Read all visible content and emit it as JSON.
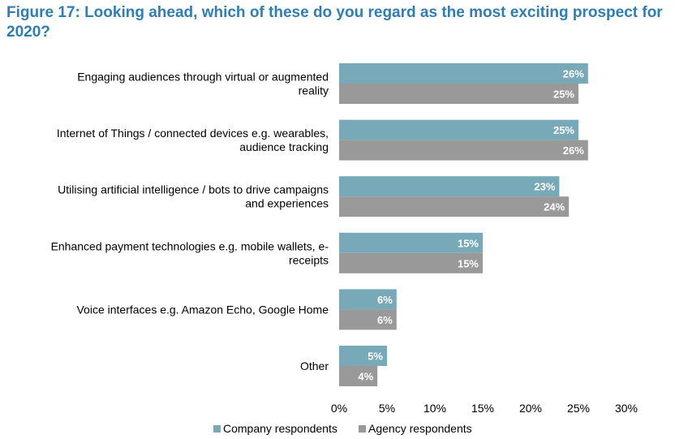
{
  "title": "Figure 17: Looking ahead, which of these do you regard as the most exciting prospect for 2020?",
  "colors": {
    "title": "#2E7DB3",
    "company": "#78A9B8",
    "agency": "#999999"
  },
  "chart_data": {
    "type": "bar",
    "orientation": "horizontal",
    "categories": [
      [
        "Engaging audiences through virtual or augmented",
        "reality"
      ],
      [
        "Internet of Things / connected devices e.g. wearables,",
        "audience tracking"
      ],
      [
        "Utilising artificial intelligence / bots to drive campaigns",
        "and experiences"
      ],
      [
        "Enhanced payment technologies e.g. mobile wallets, e-",
        "receipts"
      ],
      [
        "Voice interfaces e.g. Amazon Echo, Google Home"
      ],
      [
        "Other"
      ]
    ],
    "series": [
      {
        "name": "Company respondents",
        "values": [
          26,
          25,
          23,
          15,
          6,
          5
        ],
        "labels": [
          "26%",
          "25%",
          "23%",
          "15%",
          "6%",
          "5%"
        ]
      },
      {
        "name": "Agency respondents",
        "values": [
          25,
          26,
          24,
          15,
          6,
          4
        ],
        "labels": [
          "25%",
          "26%",
          "24%",
          "15%",
          "6%",
          "4%"
        ]
      }
    ],
    "x_ticks": [
      "0%",
      "5%",
      "10%",
      "15%",
      "20%",
      "25%",
      "30%"
    ],
    "xlim": [
      0,
      30
    ],
    "grid": false,
    "legend_position": "bottom"
  }
}
